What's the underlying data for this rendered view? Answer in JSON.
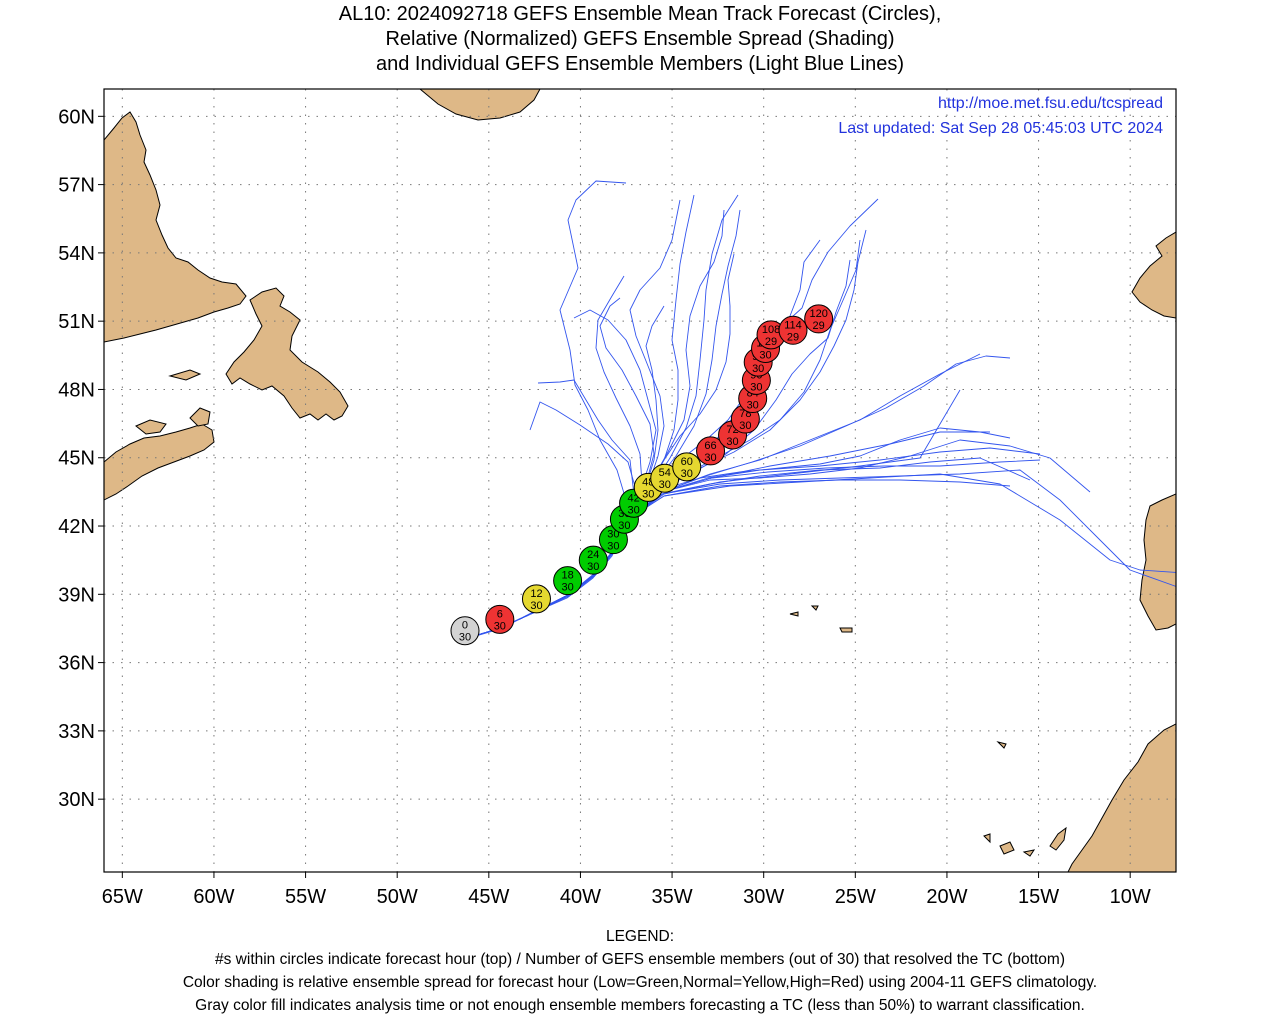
{
  "title": {
    "line1": "AL10: 2024092718 GEFS Ensemble Mean Track Forecast (Circles),",
    "line2": "Relative (Normalized) GEFS Ensemble Spread (Shading)",
    "line3": "and Individual GEFS Ensemble Members (Light Blue Lines)"
  },
  "info": {
    "url": "http://moe.met.fsu.edu/tcspread",
    "updated": "Last updated: Sat Sep 28 05:45:03 UTC 2024"
  },
  "axes": {
    "lat_labels": [
      "60N",
      "57N",
      "54N",
      "51N",
      "48N",
      "45N",
      "42N",
      "39N",
      "36N",
      "33N",
      "30N"
    ],
    "lat_values": [
      60,
      57,
      54,
      51,
      48,
      45,
      42,
      39,
      36,
      33,
      30
    ],
    "lon_labels": [
      "65W",
      "60W",
      "55W",
      "50W",
      "45W",
      "40W",
      "35W",
      "30W",
      "25W",
      "20W",
      "15W",
      "10W"
    ],
    "lon_values": [
      -65,
      -60,
      -55,
      -50,
      -45,
      -40,
      -35,
      -30,
      -25,
      -20,
      -15,
      -10
    ],
    "lon_range": [
      -66,
      -7.5
    ],
    "lat_range": [
      26.8,
      61.2
    ],
    "grid": "dotted"
  },
  "colors": {
    "land": "#deb887",
    "member_track": "#3355ee",
    "green": "#00cc00",
    "yellow": "#e5d830",
    "red": "#ee3333",
    "gray": "#d3d3d3"
  },
  "mean_track": [
    {
      "hour": "0",
      "members": "30",
      "lon": -46.3,
      "lat": 37.4,
      "color": "gray"
    },
    {
      "hour": "6",
      "members": "30",
      "lon": -44.4,
      "lat": 37.9,
      "color": "red"
    },
    {
      "hour": "12",
      "members": "30",
      "lon": -42.4,
      "lat": 38.8,
      "color": "yellow"
    },
    {
      "hour": "18",
      "members": "30",
      "lon": -40.7,
      "lat": 39.6,
      "color": "green"
    },
    {
      "hour": "24",
      "members": "30",
      "lon": -39.3,
      "lat": 40.5,
      "color": "green"
    },
    {
      "hour": "30",
      "members": "30",
      "lon": -38.2,
      "lat": 41.4,
      "color": "green"
    },
    {
      "hour": "36",
      "members": "30",
      "lon": -37.6,
      "lat": 42.3,
      "color": "green"
    },
    {
      "hour": "42",
      "members": "30",
      "lon": -37.1,
      "lat": 43.0,
      "color": "green"
    },
    {
      "hour": "48",
      "members": "30",
      "lon": -36.3,
      "lat": 43.7,
      "color": "yellow"
    },
    {
      "hour": "54",
      "members": "30",
      "lon": -35.4,
      "lat": 44.1,
      "color": "yellow"
    },
    {
      "hour": "60",
      "members": "30",
      "lon": -34.2,
      "lat": 44.6,
      "color": "yellow"
    },
    {
      "hour": "66",
      "members": "30",
      "lon": -32.9,
      "lat": 45.3,
      "color": "red"
    },
    {
      "hour": "72",
      "members": "30",
      "lon": -31.7,
      "lat": 46.0,
      "color": "red"
    },
    {
      "hour": "78",
      "members": "30",
      "lon": -31.0,
      "lat": 46.7,
      "color": "red"
    },
    {
      "hour": "84",
      "members": "30",
      "lon": -30.6,
      "lat": 47.6,
      "color": "red"
    },
    {
      "hour": "90",
      "members": "30",
      "lon": -30.4,
      "lat": 48.4,
      "color": "red"
    },
    {
      "hour": "96",
      "members": "30",
      "lon": -30.3,
      "lat": 49.2,
      "color": "red"
    },
    {
      "hour": "102",
      "members": "30",
      "lon": -29.9,
      "lat": 49.8,
      "color": "red"
    },
    {
      "hour": "108",
      "members": "29",
      "lon": -29.6,
      "lat": 50.4,
      "color": "red"
    },
    {
      "hour": "114",
      "members": "29",
      "lon": -28.4,
      "lat": 50.6,
      "color": "red"
    },
    {
      "hour": "120",
      "members": "29",
      "lon": -27.0,
      "lat": 51.1,
      "color": "red"
    }
  ],
  "legend": {
    "heading": "LEGEND:",
    "line1": "#s within circles indicate forecast hour (top) / Number of GEFS ensemble members (out of 30) that resolved the TC (bottom)",
    "line2": "Color shading is relative ensemble spread for forecast hour (Low=Green,Normal=Yellow,High=Red) using 2004-11 GEFS climatology.",
    "line3": "Gray color fill indicates analysis time or not enough ensemble members forecasting a TC (less than 50%) to warrant classification."
  }
}
